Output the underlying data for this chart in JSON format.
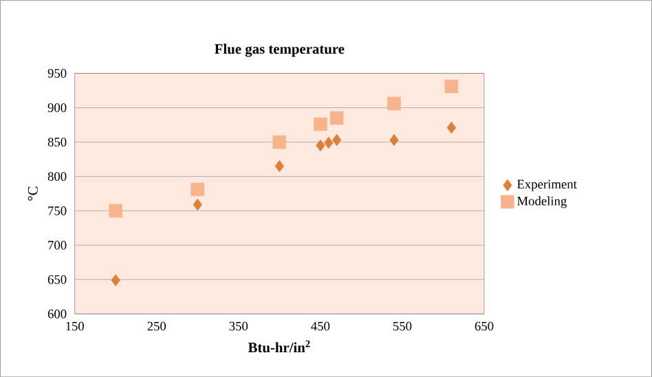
{
  "chart_data": {
    "type": "scatter",
    "title": "Flue gas temperature",
    "xlabel": "Btu-hr/in$^{2}$",
    "ylabel": "°C",
    "xlim": [
      150,
      650
    ],
    "xticks": [
      150,
      250,
      350,
      450,
      550,
      650
    ],
    "ylim": [
      600,
      950
    ],
    "yticks": [
      600,
      650,
      700,
      750,
      800,
      850,
      900,
      950
    ],
    "grid": "y",
    "legend": "right",
    "series": [
      {
        "name": "Experiment",
        "color": "#d9823b",
        "marker": "diamond",
        "x": [
          200,
          300,
          400,
          450,
          460,
          470,
          540,
          610
        ],
        "values": [
          649,
          759,
          815,
          845,
          849,
          853,
          853,
          871
        ]
      },
      {
        "name": "Modeling",
        "color": "#f7b48c",
        "marker": "square",
        "x": [
          200,
          300,
          400,
          450,
          470,
          540,
          610
        ],
        "values": [
          750,
          781,
          850,
          876,
          885,
          906,
          931
        ]
      }
    ]
  }
}
